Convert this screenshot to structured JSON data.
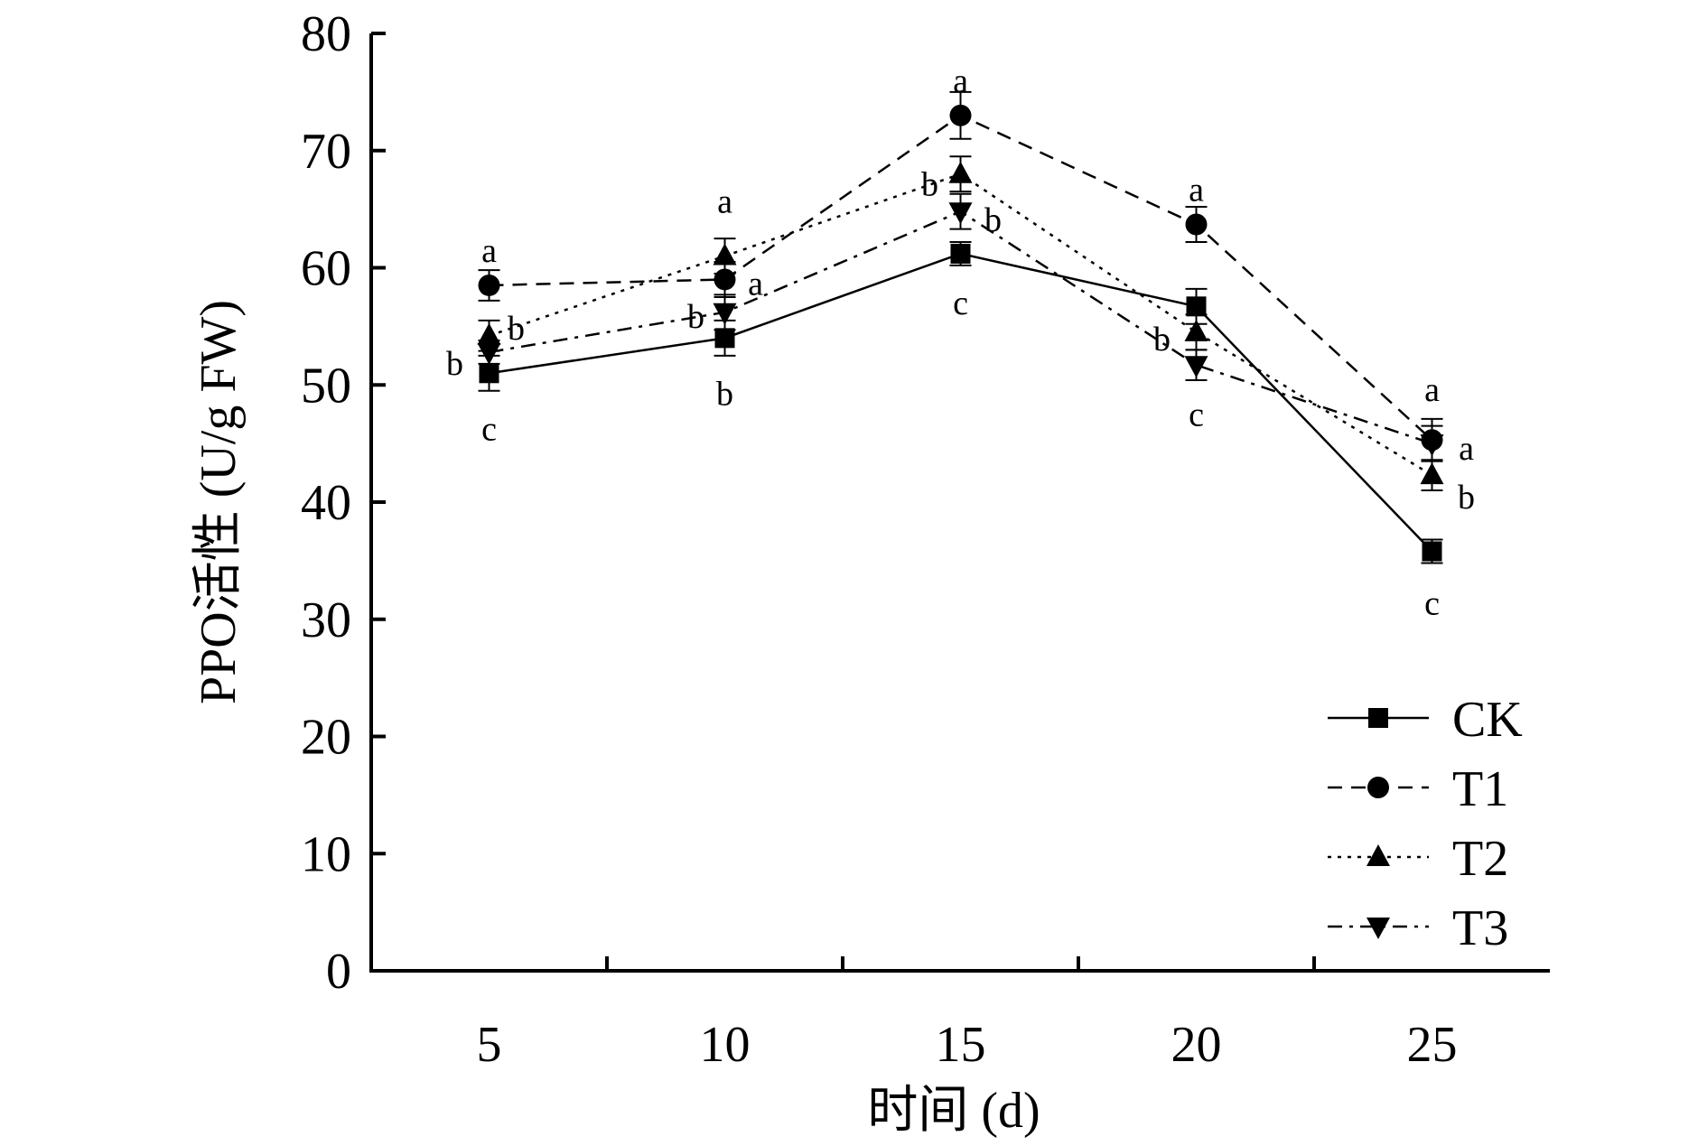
{
  "chart_data": {
    "type": "line",
    "title": "",
    "xlabel": "时间 (d)",
    "ylabel": "PPO活性 (U/g FW)",
    "x": [
      5,
      10,
      15,
      20,
      25
    ],
    "x_ticks": [
      "5",
      "10",
      "15",
      "20",
      "25"
    ],
    "xlim": [
      2.5,
      27.5
    ],
    "ylim": [
      0,
      80
    ],
    "y_ticks": [
      "0",
      "10",
      "20",
      "30",
      "40",
      "50",
      "60",
      "70",
      "80"
    ],
    "y_tick_values": [
      0,
      10,
      20,
      30,
      40,
      50,
      60,
      70,
      80
    ],
    "grid": false,
    "legend_position": "bottom-right",
    "series": [
      {
        "name": "CK",
        "marker": "square",
        "line_style": "solid",
        "values": [
          51.0,
          54.0,
          61.2,
          56.7,
          35.8
        ],
        "errors": [
          1.5,
          1.5,
          1.0,
          1.5,
          1.0
        ],
        "sig": [
          "c",
          "b",
          "c",
          "c",
          "c"
        ]
      },
      {
        "name": "T1",
        "marker": "circle",
        "line_style": "dashed",
        "values": [
          58.5,
          59.0,
          73.0,
          63.7,
          45.3
        ],
        "errors": [
          1.3,
          1.5,
          2.0,
          1.5,
          1.8
        ],
        "sig": [
          "a",
          "a",
          "a",
          "a",
          "a"
        ]
      },
      {
        "name": "T2",
        "marker": "triangle-up",
        "line_style": "dotted",
        "values": [
          54.2,
          61.0,
          68.0,
          54.5,
          42.3
        ],
        "errors": [
          1.3,
          1.5,
          1.5,
          1.5,
          1.3
        ],
        "sig": [
          "b",
          "a",
          "b",
          "b",
          "b"
        ]
      },
      {
        "name": "T3",
        "marker": "triangle-down",
        "line_style": "dashdot",
        "values": [
          52.8,
          56.2,
          64.8,
          51.7,
          45.0
        ],
        "errors": [
          1.0,
          1.5,
          1.5,
          1.3,
          1.5
        ],
        "sig": [
          "b",
          "b",
          "b",
          "b",
          "a"
        ]
      }
    ]
  }
}
